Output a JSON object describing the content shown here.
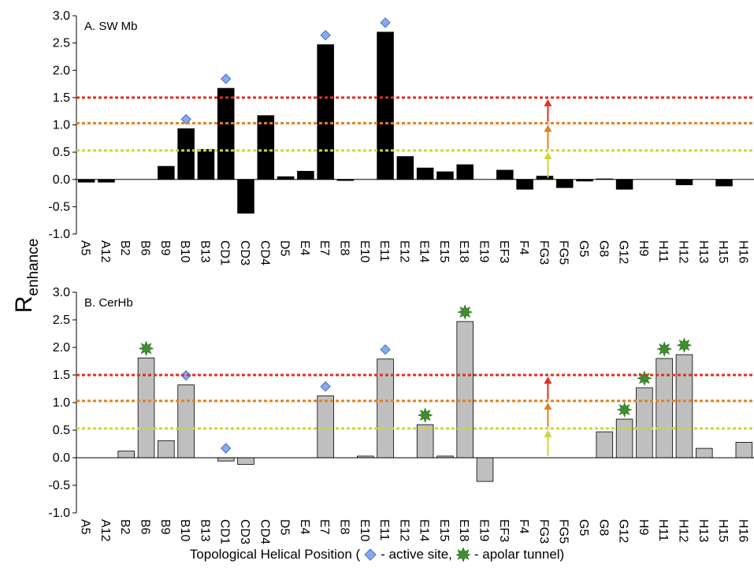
{
  "chart_data": [
    {
      "type": "bar",
      "title": "A. SW Mb",
      "categories": [
        "A5",
        "A12",
        "B2",
        "B6",
        "B9",
        "B10",
        "B13",
        "CD1",
        "CD3",
        "CD4",
        "D5",
        "E4",
        "E7",
        "E8",
        "E10",
        "E11",
        "E12",
        "E14",
        "E15",
        "E18",
        "E19",
        "EF3",
        "F4",
        "FG3",
        "FG5",
        "G5",
        "G8",
        "G12",
        "H9",
        "H11",
        "H12",
        "H13",
        "H15",
        "H16"
      ],
      "values": [
        -0.05,
        -0.05,
        0,
        0,
        0.24,
        0.93,
        0.55,
        1.67,
        -0.62,
        1.17,
        0.05,
        0.15,
        2.47,
        -0.02,
        0,
        2.7,
        0.42,
        0.21,
        0.14,
        0.27,
        0,
        0.17,
        -0.18,
        0.06,
        -0.15,
        -0.03,
        0.01,
        -0.18,
        0,
        0,
        -0.1,
        0,
        -0.12,
        0
      ],
      "color": "#000000",
      "stroke": "#000000",
      "ylim": [
        -1,
        3
      ],
      "yticks": [
        {
          "value": -1,
          "label": "-1.0"
        },
        {
          "value": -0.5,
          "label": "-0.5"
        },
        {
          "value": 0,
          "label": "0.0"
        },
        {
          "value": 0.5,
          "label": "0.5"
        },
        {
          "value": 1,
          "label": "1.0"
        },
        {
          "value": 1.5,
          "label": "1.5"
        },
        {
          "value": 2,
          "label": "2.0"
        },
        {
          "value": 2.5,
          "label": "2.5"
        },
        {
          "value": 3,
          "label": "3.0"
        }
      ],
      "thresholds": [
        {
          "value": 0.53,
          "color": "#cfd43a"
        },
        {
          "value": 1.03,
          "color": "#e2801f"
        },
        {
          "value": 1.5,
          "color": "#e0301e"
        }
      ],
      "active_site": [
        "B10",
        "CD1",
        "E7",
        "E11"
      ],
      "apolar_tunnel": []
    },
    {
      "type": "bar",
      "title": "B. CerHb",
      "categories": [
        "A5",
        "A12",
        "B2",
        "B6",
        "B9",
        "B10",
        "B13",
        "CD1",
        "CD3",
        "CD4",
        "D5",
        "E4",
        "E7",
        "E8",
        "E10",
        "E11",
        "E12",
        "E14",
        "E15",
        "E18",
        "E19",
        "EF3",
        "F4",
        "FG3",
        "FG5",
        "G5",
        "G8",
        "G12",
        "H9",
        "H11",
        "H12",
        "H13",
        "H15",
        "H16"
      ],
      "values": [
        0,
        0,
        0.12,
        1.81,
        0.31,
        1.32,
        0,
        -0.06,
        -0.12,
        0,
        0,
        0,
        1.12,
        0,
        0.03,
        1.79,
        0,
        0.6,
        0.03,
        2.47,
        -0.43,
        0,
        0,
        0,
        0,
        0,
        0.47,
        0.7,
        1.27,
        1.8,
        1.87,
        0.17,
        0,
        0.28
      ],
      "color": "#bfbfbf",
      "stroke": "#000000",
      "ylim": [
        -1,
        3
      ],
      "yticks": [
        {
          "value": -1,
          "label": "-1.0"
        },
        {
          "value": -0.5,
          "label": "-0.5"
        },
        {
          "value": 0,
          "label": "0.0"
        },
        {
          "value": 0.5,
          "label": "0.5"
        },
        {
          "value": 1,
          "label": "1.0"
        },
        {
          "value": 1.5,
          "label": "1.5"
        },
        {
          "value": 2,
          "label": "2.0"
        },
        {
          "value": 2.5,
          "label": "2.5"
        },
        {
          "value": 3,
          "label": "3.0"
        }
      ],
      "thresholds": [
        {
          "value": 0.53,
          "color": "#cfd43a"
        },
        {
          "value": 1.03,
          "color": "#e2801f"
        },
        {
          "value": 1.5,
          "color": "#e0301e"
        }
      ],
      "active_site": [
        "B10",
        "CD1",
        "E7",
        "E11"
      ],
      "apolar_tunnel": [
        "B6",
        "E14",
        "E18",
        "G12",
        "H9",
        "H11",
        "H12"
      ]
    }
  ],
  "shared": {
    "y_label": "R",
    "y_label_sub": "enhance",
    "x_label": "Topological Helical Position (",
    "active_label": "- active site,",
    "tunnel_label": "- apolar tunnel)",
    "arrow_category": "FG3"
  }
}
